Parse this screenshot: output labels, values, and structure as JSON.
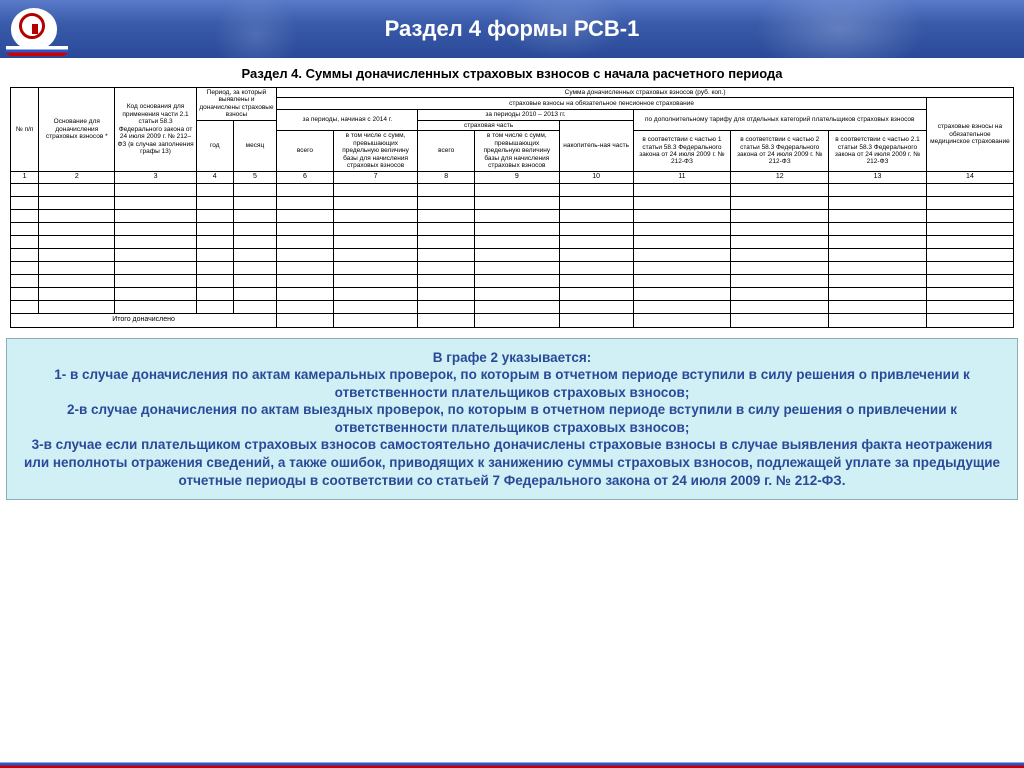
{
  "header": {
    "title": "Раздел 4 формы РСВ-1"
  },
  "section_title": "Раздел 4. Суммы доначисленных страховых взносов с начала расчетного периода",
  "table": {
    "top_sum_label": "Сумма доначисленных страховых взносов (руб. коп.)",
    "pension_label": "страховые взносы на обязательное пенсионное страхование",
    "col1": "№ п/п",
    "col2": "Основание для доначисления страховых взносов *",
    "col3": "Код основания для применения части 2.1 статьи 58.3 Федерального закона от 24 июля 2009 г. № 212–ФЗ (в случае заполнения графы 13)",
    "period_group": "Период, за который выявлены и доначислены страховые взносы",
    "col4": "год",
    "col5": "месяц",
    "period2014": "за периоды, начиная с 2014 г.",
    "period2010": "за периоды 2010 – 2013 гг.",
    "insur_part": "страховая часть",
    "col6": "всего",
    "col7": "в том числе с сумм, превышающих предельную величину базы для начисления страховых взносов",
    "col8": "всего",
    "col9": "в том числе с сумм, превышающих предельную величину базы для начисления страховых взносов",
    "col10": "накопитель-ная часть",
    "addtariff_group": "по дополнительному тарифу для отдельных категорий плательщиков страховых взносов",
    "col11": "в соответствии с частью 1 статьи 58.3 Федерального закона от 24 июля 2009 г. № 212-ФЗ",
    "col12": "в соответствии с частью 2 статьи 58.3 Федерального закона от 24 июля 2009 г. № 212-ФЗ",
    "col13": "в соответствии с частью 2.1 статьи 58.3 Федерального закона от 24 июля 2009 г. № 212-ФЗ",
    "col14": "страховые взносы на обязательное медицинское страхование",
    "colnums": [
      "1",
      "2",
      "3",
      "4",
      "5",
      "6",
      "7",
      "8",
      "9",
      "10",
      "11",
      "12",
      "13",
      "14"
    ],
    "footer": "Итого доначислено",
    "blank_rows": 10
  },
  "notes": {
    "title": "В графе 2 указывается:",
    "line1": "1- в случае доначисления по актам камеральных проверок, по которым в отчетном периоде вступили в силу решения о привлечении к ответственности плательщиков страховых взносов;",
    "line2": "2-в случае доначисления по актам выездных проверок, по которым в отчетном периоде вступили в силу решения о привлечении к ответственности плательщиков страховых взносов;",
    "line3": "3-в случае если плательщиком страховых взносов самостоятельно доначислены страховые взносы в случае выявления факта неотражения или неполноты отражения сведений, а также ошибок, приводящих к занижению суммы страховых взносов, подлежащей уплате за предыдущие отчетные периоды в соответствии со статьей  7 Федерального закона от 24 июля 2009 г. № 212-ФЗ."
  },
  "colors": {
    "banner_top": "#5a7bc9",
    "banner_bottom": "#2a4a99",
    "notes_bg": "#d0f0f5",
    "notes_text": "#2a4a99",
    "table_border": "#000000"
  }
}
